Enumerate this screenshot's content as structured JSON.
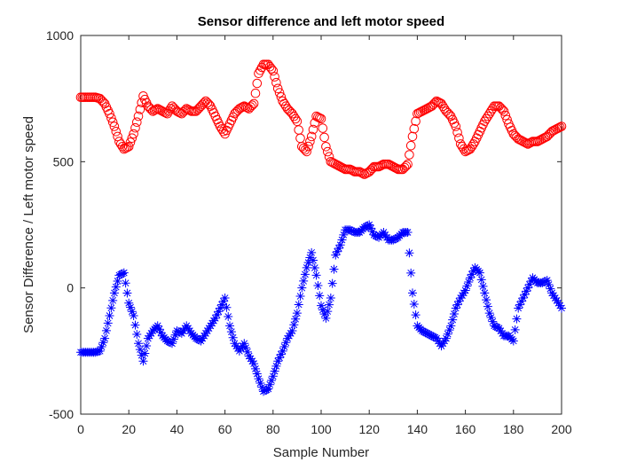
{
  "chart_data": {
    "type": "scatter",
    "title": "Sensor difference and left motor speed",
    "xlabel": "Sample Number",
    "ylabel": "Sensor Difference / Left motor speed",
    "xlim": [
      0,
      200
    ],
    "ylim": [
      -500,
      1000
    ],
    "xticks": [
      0,
      20,
      40,
      60,
      80,
      100,
      120,
      140,
      160,
      180,
      200
    ],
    "yticks": [
      -500,
      0,
      500,
      1000
    ],
    "grid": false,
    "legend": "none",
    "series": [
      {
        "marker": "circle",
        "color": "#ff0000",
        "x": [
          0,
          2,
          4,
          6,
          8,
          10,
          12,
          14,
          16,
          18,
          20,
          22,
          24,
          26,
          28,
          30,
          32,
          34,
          36,
          38,
          40,
          42,
          44,
          46,
          48,
          50,
          52,
          54,
          56,
          58,
          60,
          62,
          64,
          66,
          68,
          70,
          72,
          74,
          76,
          78,
          80,
          82,
          84,
          86,
          88,
          90,
          92,
          94,
          96,
          98,
          100,
          102,
          104,
          106,
          108,
          110,
          112,
          114,
          116,
          118,
          120,
          122,
          124,
          126,
          128,
          130,
          132,
          134,
          136,
          138,
          140,
          142,
          144,
          146,
          148,
          150,
          152,
          154,
          156,
          158,
          160,
          162,
          164,
          166,
          168,
          170,
          172,
          174,
          176,
          178,
          180,
          182,
          184,
          186,
          188,
          190,
          192,
          194,
          196,
          198,
          200
        ],
        "y": [
          755,
          755,
          755,
          755,
          750,
          730,
          690,
          640,
          580,
          550,
          560,
          610,
          680,
          760,
          720,
          700,
          710,
          700,
          690,
          720,
          700,
          690,
          710,
          700,
          700,
          720,
          740,
          720,
          680,
          640,
          610,
          650,
          690,
          710,
          720,
          710,
          730,
          850,
          885,
          885,
          860,
          790,
          740,
          710,
          690,
          660,
          560,
          540,
          600,
          680,
          670,
          560,
          500,
          490,
          480,
          470,
          470,
          460,
          460,
          450,
          460,
          480,
          480,
          490,
          490,
          480,
          470,
          470,
          490,
          600,
          690,
          700,
          710,
          720,
          740,
          730,
          700,
          680,
          640,
          570,
          540,
          550,
          580,
          620,
          660,
          690,
          720,
          720,
          700,
          650,
          610,
          590,
          580,
          570,
          580,
          580,
          590,
          600,
          620,
          630,
          640
        ]
      },
      {
        "marker": "asterisk",
        "color": "#0000ff",
        "x": [
          0,
          2,
          4,
          6,
          8,
          10,
          12,
          14,
          16,
          18,
          20,
          22,
          24,
          26,
          28,
          30,
          32,
          34,
          36,
          38,
          40,
          42,
          44,
          46,
          48,
          50,
          52,
          54,
          56,
          58,
          60,
          62,
          64,
          66,
          68,
          70,
          72,
          74,
          76,
          78,
          80,
          82,
          84,
          86,
          88,
          90,
          92,
          94,
          96,
          98,
          100,
          102,
          104,
          106,
          108,
          110,
          112,
          114,
          116,
          118,
          120,
          122,
          124,
          126,
          128,
          130,
          132,
          134,
          136,
          138,
          140,
          142,
          144,
          146,
          148,
          150,
          152,
          154,
          156,
          158,
          160,
          162,
          164,
          166,
          168,
          170,
          172,
          174,
          176,
          178,
          180,
          182,
          184,
          186,
          188,
          190,
          192,
          194,
          196,
          198,
          200
        ],
        "y": [
          -255,
          -255,
          -255,
          -255,
          -250,
          -200,
          -110,
          -20,
          50,
          60,
          -60,
          -110,
          -220,
          -290,
          -200,
          -170,
          -150,
          -190,
          -210,
          -220,
          -170,
          -180,
          -150,
          -180,
          -200,
          -210,
          -180,
          -150,
          -120,
          -80,
          -40,
          -150,
          -220,
          -250,
          -220,
          -270,
          -300,
          -360,
          -410,
          -400,
          -350,
          -290,
          -250,
          -200,
          -170,
          -100,
          0,
          80,
          140,
          50,
          -70,
          -120,
          -40,
          130,
          170,
          230,
          230,
          220,
          220,
          240,
          250,
          210,
          200,
          220,
          190,
          190,
          200,
          220,
          220,
          -20,
          -150,
          -170,
          -180,
          -190,
          -200,
          -230,
          -200,
          -150,
          -80,
          -40,
          -10,
          40,
          80,
          60,
          -20,
          -100,
          -150,
          -160,
          -190,
          -190,
          -210,
          -80,
          -40,
          0,
          40,
          20,
          20,
          30,
          -20,
          -50,
          -80
        ]
      }
    ]
  }
}
